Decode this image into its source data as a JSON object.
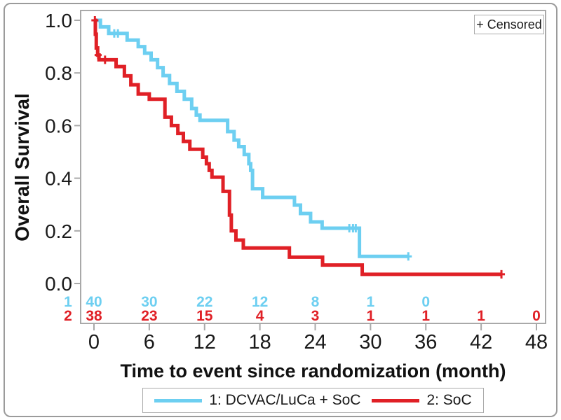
{
  "chart_data": {
    "type": "line",
    "subtype": "kaplan-meier-step",
    "title": "",
    "xlabel": "Time to event since randomization (month)",
    "ylabel": "Overall Survival",
    "xlim": [
      0,
      48
    ],
    "ylim": [
      0.0,
      1.0
    ],
    "xticks": [
      0,
      6,
      12,
      18,
      24,
      30,
      36,
      42,
      48
    ],
    "ytick_labels": [
      "1.0",
      "0.8",
      "0.6",
      "0.4",
      "0.2",
      "0.0"
    ],
    "grid": false,
    "legend_position": "bottom-center",
    "censored_label": "+ Censored",
    "colors": {
      "series1": "#6DCFF1",
      "series2": "#E02026",
      "axis": "#a9a9a9",
      "text": "#1a1a1a"
    },
    "series": [
      {
        "name": "1: DCVAC/LuCa + SoC",
        "group_id": "1",
        "color": "#6DCFF1",
        "steps": [
          [
            0,
            1.0
          ],
          [
            0.7,
            0.975
          ],
          [
            1.6,
            0.95
          ],
          [
            3.6,
            0.925
          ],
          [
            4.8,
            0.9
          ],
          [
            5.5,
            0.875
          ],
          [
            6.2,
            0.85
          ],
          [
            6.9,
            0.82
          ],
          [
            7.5,
            0.79
          ],
          [
            8.2,
            0.76
          ],
          [
            9.0,
            0.73
          ],
          [
            9.8,
            0.7
          ],
          [
            10.6,
            0.665
          ],
          [
            11.1,
            0.64
          ],
          [
            11.5,
            0.62
          ],
          [
            14.5,
            0.577
          ],
          [
            15.2,
            0.545
          ],
          [
            15.7,
            0.52
          ],
          [
            16.3,
            0.49
          ],
          [
            16.8,
            0.455
          ],
          [
            17.0,
            0.43
          ],
          [
            17.2,
            0.36
          ],
          [
            18.3,
            0.327
          ],
          [
            21.75,
            0.298
          ],
          [
            22.4,
            0.266
          ],
          [
            23.5,
            0.234
          ],
          [
            24.75,
            0.21
          ],
          [
            28.8,
            0.103
          ],
          [
            34.1,
            0.103
          ]
        ],
        "censors": [
          [
            2.2,
            0.95
          ],
          [
            2.6,
            0.95
          ],
          [
            27.7,
            0.21
          ],
          [
            28.1,
            0.21
          ],
          [
            28.4,
            0.21
          ],
          [
            34.1,
            0.103
          ]
        ]
      },
      {
        "name": "2: SoC",
        "group_id": "2",
        "color": "#E02026",
        "steps": [
          [
            0,
            1.0
          ],
          [
            0.15,
            0.947
          ],
          [
            0.25,
            0.895
          ],
          [
            0.4,
            0.868
          ],
          [
            0.55,
            0.85
          ],
          [
            2.4,
            0.824
          ],
          [
            3.3,
            0.789
          ],
          [
            4.0,
            0.755
          ],
          [
            4.8,
            0.72
          ],
          [
            6.0,
            0.7
          ],
          [
            7.7,
            0.632
          ],
          [
            8.4,
            0.6
          ],
          [
            9.1,
            0.57
          ],
          [
            9.7,
            0.54
          ],
          [
            10.4,
            0.51
          ],
          [
            11.8,
            0.48
          ],
          [
            12.2,
            0.455
          ],
          [
            12.5,
            0.43
          ],
          [
            12.8,
            0.404
          ],
          [
            14.0,
            0.35
          ],
          [
            14.7,
            0.26
          ],
          [
            14.9,
            0.2
          ],
          [
            15.4,
            0.165
          ],
          [
            16.2,
            0.135
          ],
          [
            21.2,
            0.1
          ],
          [
            24.8,
            0.07
          ],
          [
            29.1,
            0.035
          ],
          [
            44.2,
            0.035
          ]
        ],
        "censors": [
          [
            0.1,
            1.0
          ],
          [
            0.45,
            0.868
          ],
          [
            1.2,
            0.85
          ],
          [
            44.2,
            0.035
          ]
        ]
      }
    ],
    "at_risk_table": {
      "rows": [
        {
          "label": "1",
          "color": "#6DCFF1",
          "values": [
            [
              0,
              40
            ],
            [
              6,
              30
            ],
            [
              12,
              22
            ],
            [
              18,
              12
            ],
            [
              24,
              8
            ],
            [
              30,
              1
            ],
            [
              36,
              0
            ]
          ]
        },
        {
          "label": "2",
          "color": "#E02026",
          "values": [
            [
              0,
              38
            ],
            [
              6,
              23
            ],
            [
              12,
              15
            ],
            [
              18,
              4
            ],
            [
              24,
              3
            ],
            [
              30,
              1
            ],
            [
              36,
              1
            ],
            [
              42,
              1
            ],
            [
              48,
              0
            ]
          ]
        }
      ]
    }
  }
}
